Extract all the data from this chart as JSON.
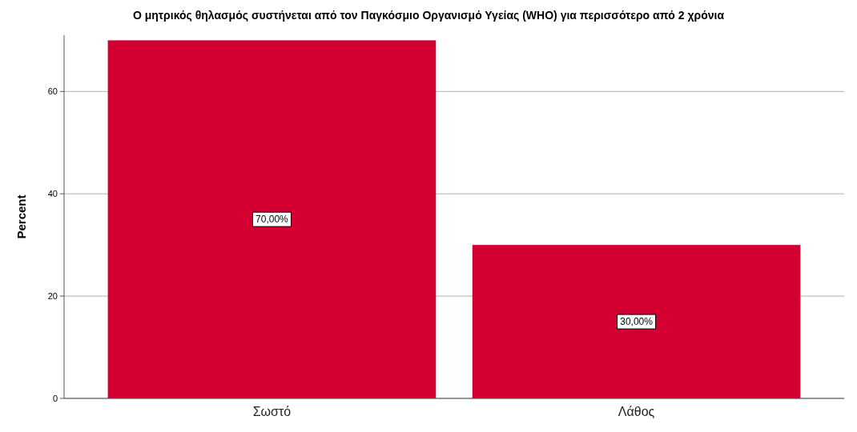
{
  "chart_data": {
    "type": "bar",
    "title": "Ο μητρικός θηλασμός συστήνεται από τον Παγκόσμιο Οργανισμό Υγείας (WHO) για περισσότερο από 2 χρόνια",
    "ylabel": "Percent",
    "categories": [
      "Σωστό",
      "Λάθος"
    ],
    "values": [
      70,
      30
    ],
    "color": "#d50032",
    "value_labels": [
      "70,00%",
      "30,00%"
    ],
    "ylim": [
      0,
      71
    ],
    "yticks": [
      0,
      20,
      40,
      60
    ],
    "grid": "y"
  }
}
